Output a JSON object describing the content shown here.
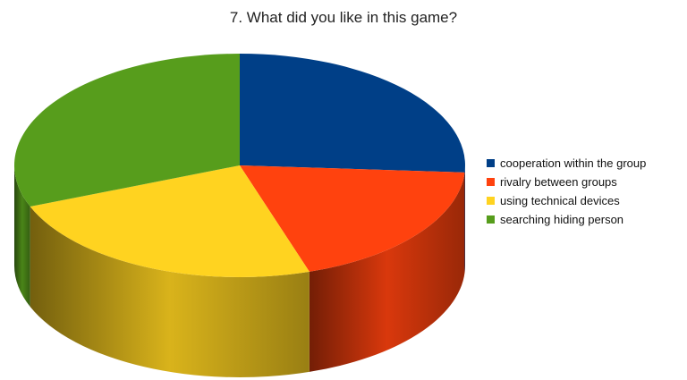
{
  "chart_data": {
    "type": "pie",
    "title": "7. What did you like in this game?",
    "legend_position": "right",
    "style": "3d",
    "slices": [
      {
        "label": "cooperation within the group",
        "value": 26,
        "color": "#003f87"
      },
      {
        "label": "rivalry between groups",
        "value": 19,
        "color": "#ff420e"
      },
      {
        "label": "using technical devices",
        "value": 24,
        "color": "#ffd320"
      },
      {
        "label": "searching hiding person",
        "value": 31,
        "color": "#579d1c"
      }
    ]
  }
}
